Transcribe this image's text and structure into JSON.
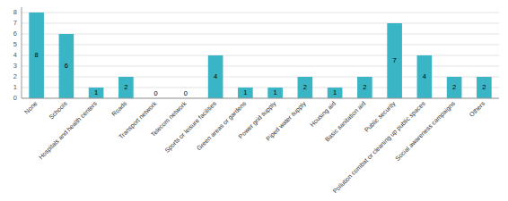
{
  "chart_data": {
    "type": "bar",
    "categories": [
      "None",
      "Schools",
      "Hospitals and health centers",
      "Roads",
      "Transport network",
      "Telecom network",
      "Sports or leisure facilities",
      "Green areas or gardens",
      "Power grid supply",
      "Piped water supply",
      "Housing aid",
      "Basic sanitation aid",
      "Public security",
      "Pollution combat or cleaning up public spaces",
      "Social awareness campaigns",
      "Others"
    ],
    "values": [
      8,
      6,
      1,
      2,
      0,
      0,
      4,
      1,
      1,
      2,
      1,
      2,
      7,
      4,
      2,
      2
    ],
    "color": "#3ab5c6",
    "ylim": [
      0,
      8.5
    ],
    "yticks": [
      0,
      1,
      2,
      3,
      4,
      5,
      6,
      7,
      8
    ],
    "grid": true,
    "data_labels": true
  }
}
